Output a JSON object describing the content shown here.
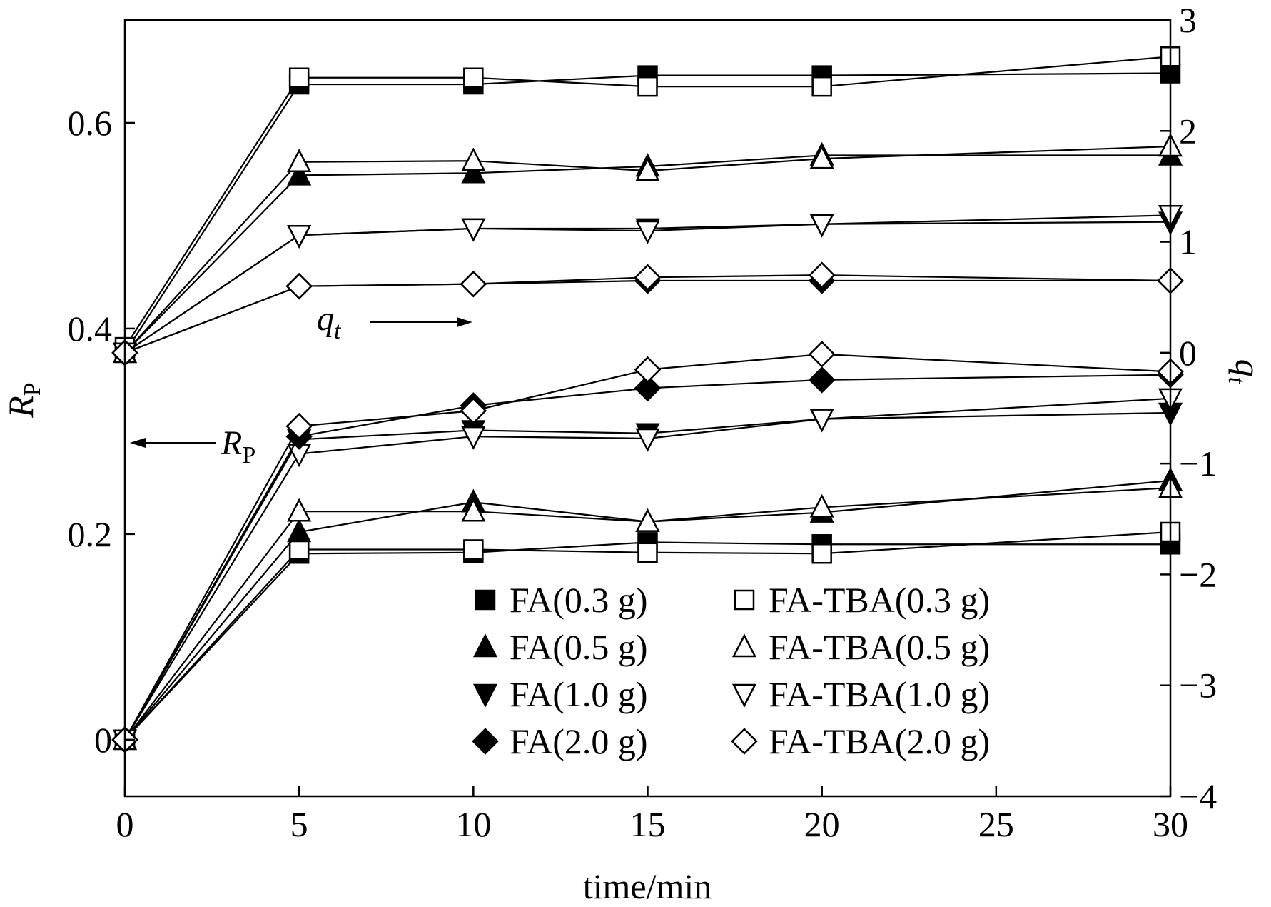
{
  "chart_data": {
    "type": "line",
    "xlabel": "time/min",
    "ylabel_left": "R",
    "ylabel_left_sub": "P",
    "ylabel_right": "q",
    "ylabel_right_sub": "t",
    "xlim": [
      0,
      30
    ],
    "ylim_left": [
      -0.055,
      0.7
    ],
    "ylim_right": [
      -4,
      3
    ],
    "xticks": [
      0,
      5,
      10,
      15,
      20,
      25,
      30
    ],
    "xtick_labels": [
      "0",
      "5",
      "10",
      "15",
      "20",
      "25",
      "30"
    ],
    "yticks_left": [
      0,
      0.2,
      0.4,
      0.6
    ],
    "ytick_labels_left": [
      "0",
      "0.2",
      "0.4",
      "0.6"
    ],
    "yticks_right": [
      -4,
      -3,
      -2,
      -1,
      0,
      1,
      2,
      3
    ],
    "ytick_labels_right": [
      "−4",
      "−3",
      "−2",
      "−1",
      "0",
      "1",
      "2",
      "3"
    ],
    "annotations": {
      "qt_arrow": {
        "main": "q",
        "sub": "t",
        "direction": "right"
      },
      "rp_arrow": {
        "main": "R",
        "sub": "P",
        "direction": "left"
      }
    },
    "x": [
      0,
      5,
      10,
      15,
      20,
      30
    ],
    "series": [
      {
        "name": "FA(0.3 g)",
        "axis": "left",
        "marker": "square",
        "filled": true,
        "values": [
          0,
          0.181,
          0.182,
          0.192,
          0.19,
          0.19
        ]
      },
      {
        "name": "FA-TBA(0.3 g)",
        "axis": "left",
        "marker": "square",
        "filled": false,
        "values": [
          0,
          0.185,
          0.185,
          0.182,
          0.181,
          0.202
        ]
      },
      {
        "name": "FA(0.5 g)",
        "axis": "left",
        "marker": "triangle-up",
        "filled": true,
        "values": [
          0,
          0.202,
          0.231,
          0.212,
          0.221,
          0.252
        ]
      },
      {
        "name": "FA-TBA(0.5 g)",
        "axis": "left",
        "marker": "triangle-up",
        "filled": false,
        "values": [
          0,
          0.222,
          0.222,
          0.212,
          0.226,
          0.245
        ]
      },
      {
        "name": "FA(1.0 g)",
        "axis": "left",
        "marker": "triangle-down",
        "filled": true,
        "values": [
          0,
          0.292,
          0.301,
          0.298,
          0.312,
          0.318
        ]
      },
      {
        "name": "FA-TBA(1.0 g)",
        "axis": "left",
        "marker": "triangle-down",
        "filled": false,
        "values": [
          0,
          0.278,
          0.295,
          0.293,
          0.312,
          0.332
        ]
      },
      {
        "name": "FA(2.0 g)",
        "axis": "left",
        "marker": "diamond",
        "filled": true,
        "values": [
          0,
          0.295,
          0.325,
          0.342,
          0.35,
          0.355
        ]
      },
      {
        "name": "FA-TBA(2.0 g)",
        "axis": "left",
        "marker": "diamond",
        "filled": false,
        "values": [
          0,
          0.305,
          0.32,
          0.36,
          0.375,
          0.358
        ]
      },
      {
        "name": "FA(0.3 g)",
        "axis": "right",
        "marker": "square",
        "filled": true,
        "values": [
          0,
          2.42,
          2.42,
          2.5,
          2.5,
          2.52
        ]
      },
      {
        "name": "FA-TBA(0.3 g)",
        "axis": "right",
        "marker": "square",
        "filled": false,
        "values": [
          0.05,
          2.48,
          2.48,
          2.4,
          2.4,
          2.67
        ]
      },
      {
        "name": "FA(0.5 g)",
        "axis": "right",
        "marker": "triangle-up",
        "filled": true,
        "values": [
          0,
          1.6,
          1.62,
          1.68,
          1.78,
          1.78
        ]
      },
      {
        "name": "FA-TBA(0.5 g)",
        "axis": "right",
        "marker": "triangle-up",
        "filled": false,
        "values": [
          0,
          1.72,
          1.73,
          1.64,
          1.75,
          1.86
        ]
      },
      {
        "name": "FA(1.0 g)",
        "axis": "right",
        "marker": "triangle-down",
        "filled": true,
        "values": [
          0,
          1.06,
          1.12,
          1.12,
          1.16,
          1.18
        ]
      },
      {
        "name": "FA-TBA(1.0 g)",
        "axis": "right",
        "marker": "triangle-down",
        "filled": false,
        "values": [
          0,
          1.06,
          1.12,
          1.1,
          1.16,
          1.24
        ]
      },
      {
        "name": "FA(2.0 g)",
        "axis": "right",
        "marker": "diamond",
        "filled": true,
        "values": [
          0,
          0.6,
          0.62,
          0.65,
          0.65,
          0.65
        ]
      },
      {
        "name": "FA-TBA(2.0 g)",
        "axis": "right",
        "marker": "diamond",
        "filled": false,
        "values": [
          0,
          0.6,
          0.62,
          0.68,
          0.7,
          0.65
        ]
      }
    ],
    "legend": {
      "placement": "bottom-right",
      "columns": [
        [
          "FA(0.3 g)",
          "FA(0.5 g)",
          "FA(1.0 g)",
          "FA(2.0 g)"
        ],
        [
          "FA-TBA(0.3 g)",
          "FA-TBA(0.5 g)",
          "FA-TBA(1.0 g)",
          "FA-TBA(2.0 g)"
        ]
      ]
    },
    "colors": {
      "line": "#000000",
      "fill": "#000000",
      "background": "#ffffff"
    }
  }
}
